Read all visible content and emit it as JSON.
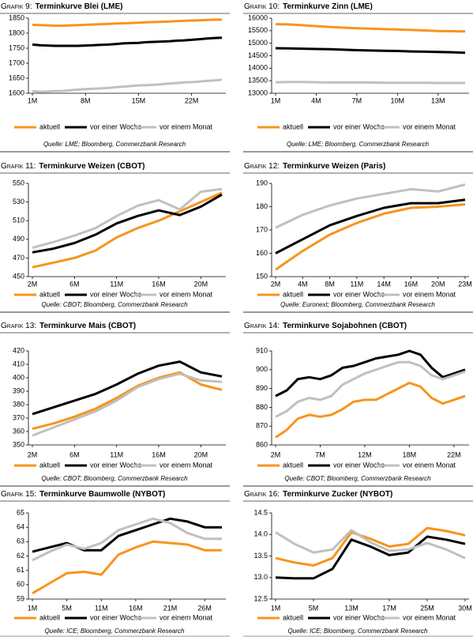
{
  "chart_data": [
    {
      "type": "line",
      "label": "Grafik 9:",
      "title": "Terminkurve Blei (LME)",
      "categories": [
        "1M",
        null,
        null,
        null,
        null,
        null,
        null,
        "8M",
        null,
        null,
        null,
        null,
        null,
        null,
        "15M",
        null,
        null,
        null,
        null,
        null,
        null,
        "22M",
        null,
        null,
        null,
        null
      ],
      "series": [
        {
          "name": "aktuell",
          "color": "#f7941d",
          "values": [
            1828,
            1827,
            1826,
            1825,
            1825,
            1826,
            1827,
            1828,
            1829,
            1830,
            1831,
            1832,
            1833,
            1834,
            1835,
            1836,
            1837,
            1838,
            1839,
            1840,
            1841,
            1842,
            1843,
            1844,
            1845,
            1845
          ]
        },
        {
          "name": "vor einer Woche",
          "color": "#000000",
          "values": [
            1762,
            1760,
            1759,
            1758,
            1758,
            1758,
            1758,
            1759,
            1760,
            1761,
            1762,
            1764,
            1766,
            1767,
            1768,
            1770,
            1771,
            1772,
            1773,
            1775,
            1776,
            1778,
            1780,
            1782,
            1784,
            1785
          ]
        },
        {
          "name": "vor einem Monat",
          "color": "#c0c0c0",
          "values": [
            1607,
            1605,
            1606,
            1607,
            1608,
            1610,
            1612,
            1614,
            1615,
            1616,
            1618,
            1620,
            1622,
            1624,
            1626,
            1627,
            1628,
            1630,
            1632,
            1634,
            1636,
            1637,
            1639,
            1641,
            1643,
            1645
          ]
        }
      ],
      "ylim": [
        1600,
        1850
      ],
      "yticks": [
        1600,
        1650,
        1700,
        1750,
        1800,
        1850
      ],
      "legend": "bottom",
      "source": "Quelle: LME; Bloomberg, Commerzbank Research"
    },
    {
      "type": "line",
      "label": "Grafik 10:",
      "title": "Terminkurve Zinn (LME)",
      "categories": [
        "1M",
        null,
        null,
        "4M",
        null,
        null,
        "7M",
        null,
        null,
        "10M",
        null,
        null,
        "13M",
        null,
        null
      ],
      "series": [
        {
          "name": "aktuell",
          "color": "#f7941d",
          "values": [
            15760,
            15750,
            15720,
            15680,
            15650,
            15620,
            15600,
            15580,
            15560,
            15550,
            15530,
            15510,
            15490,
            15480,
            15470
          ]
        },
        {
          "name": "vor einer Woche",
          "color": "#000000",
          "values": [
            14800,
            14790,
            14780,
            14770,
            14760,
            14740,
            14720,
            14710,
            14700,
            14690,
            14670,
            14660,
            14650,
            14640,
            14620
          ]
        },
        {
          "name": "vor einem Monat",
          "color": "#c0c0c0",
          "values": [
            13440,
            13450,
            13450,
            13440,
            13430,
            13430,
            13430,
            13430,
            13420,
            13420,
            13420,
            13420,
            13410,
            13410,
            13410
          ]
        }
      ],
      "ylim": [
        13000,
        16000
      ],
      "yticks": [
        13000,
        13500,
        14000,
        14500,
        15000,
        15500,
        16000
      ],
      "legend": "bottom",
      "source": "Quelle: LME; Bloomberg, Commerzbank Research"
    },
    {
      "type": "line",
      "label": "Grafik 11:",
      "title": "Terminkurve Weizen (CBOT)",
      "categories": [
        "2M",
        null,
        "6M",
        null,
        "11M",
        null,
        "16M",
        null,
        "20M",
        null
      ],
      "series": [
        {
          "name": "aktuell",
          "color": "#f7941d",
          "values": [
            460,
            465,
            470,
            478,
            492,
            502,
            510,
            520,
            530,
            540
          ]
        },
        {
          "name": "vor einer Woche",
          "color": "#000000",
          "values": [
            476,
            480,
            486,
            495,
            507,
            515,
            521,
            516,
            525,
            538
          ]
        },
        {
          "name": "vor einem Monat",
          "color": "#c0c0c0",
          "values": [
            481,
            487,
            494,
            502,
            515,
            526,
            532,
            522,
            541,
            544
          ]
        }
      ],
      "ylim": [
        450,
        550
      ],
      "yticks": [
        450,
        470,
        490,
        510,
        530,
        550
      ],
      "legend": "bottom",
      "source": "Quelle: CBOT; Bloomberg, Commerzbank Research"
    },
    {
      "type": "line",
      "label": "Grafik 12:",
      "title": "Terminkurve Weizen (Paris)",
      "categories": [
        "2M",
        "4M",
        "8M",
        "11M",
        "14M",
        "16M",
        "20M",
        "23M"
      ],
      "series": [
        {
          "name": "aktuell",
          "color": "#f7941d",
          "values": [
            153,
            161,
            168,
            173,
            177,
            179.5,
            180,
            181
          ]
        },
        {
          "name": "vor einer Woche",
          "color": "#000000",
          "values": [
            160,
            166,
            172,
            176,
            179.5,
            181.5,
            181.5,
            183
          ]
        },
        {
          "name": "vor einem Monat",
          "color": "#c0c0c0",
          "values": [
            171,
            176.5,
            180.5,
            183.5,
            185.5,
            187.5,
            186.5,
            189.5
          ]
        }
      ],
      "ylim": [
        150,
        190
      ],
      "yticks": [
        150,
        160,
        170,
        180,
        190
      ],
      "legend": "bottom",
      "source": "Quelle: Euronext; Bloomberg, Commerzbank Research"
    },
    {
      "type": "line",
      "label": "Grafik 13:",
      "title": "Terminkurve Mais (CBOT)",
      "categories": [
        "2M",
        null,
        "6M",
        null,
        "11M",
        null,
        "16M",
        null,
        "20M",
        null
      ],
      "series": [
        {
          "name": "aktuell",
          "color": "#f7941d",
          "values": [
            362,
            366,
            371,
            377,
            385,
            394,
            400,
            404,
            395,
            391
          ]
        },
        {
          "name": "vor einer Woche",
          "color": "#000000",
          "values": [
            373,
            378,
            383,
            388,
            395,
            403,
            409,
            412,
            404,
            401
          ]
        },
        {
          "name": "vor einem Monat",
          "color": "#c0c0c0",
          "values": [
            357,
            363,
            369,
            375,
            383,
            393,
            399,
            403,
            398,
            397
          ]
        }
      ],
      "ylim": [
        350,
        420
      ],
      "yticks": [
        350,
        360,
        370,
        380,
        390,
        400,
        410,
        420
      ],
      "legend": "bottom",
      "source": "Quelle: CBOT; Bloomberg, Commerzbank Research"
    },
    {
      "type": "line",
      "label": "Grafik 14:",
      "title": "Terminkurve Sojabohnen (CBOT)",
      "categories": [
        "2M",
        null,
        null,
        null,
        "7M",
        null,
        null,
        null,
        "12M",
        null,
        null,
        null,
        "18M",
        null,
        null,
        null,
        "22M",
        null
      ],
      "series": [
        {
          "name": "aktuell",
          "color": "#f7941d",
          "values": [
            864,
            868,
            874,
            876,
            875,
            876,
            879,
            883,
            884,
            884,
            887,
            890,
            893,
            891,
            885,
            882,
            884,
            886
          ]
        },
        {
          "name": "vor einer Woche",
          "color": "#000000",
          "values": [
            886,
            889,
            895,
            896,
            895,
            897,
            901,
            902,
            904,
            906,
            907,
            908,
            910,
            908,
            901,
            896,
            898,
            900
          ]
        },
        {
          "name": "vor einem Monat",
          "color": "#c0c0c0",
          "values": [
            875,
            878,
            883,
            885,
            884,
            886,
            892,
            895,
            898,
            900,
            902,
            904,
            904,
            902,
            897,
            895,
            897,
            899
          ]
        }
      ],
      "ylim": [
        860,
        910
      ],
      "yticks": [
        860,
        870,
        880,
        890,
        900,
        910
      ],
      "legend": "bottom",
      "source": "Quelle: CBOT; Bloomberg, Commerzbank Research"
    },
    {
      "type": "line",
      "label": "Grafik 15:",
      "title": "Terminkurve Baumwolle (NYBOT)",
      "categories": [
        "1M",
        null,
        "5M",
        null,
        "11M",
        null,
        "16M",
        null,
        "21M",
        null,
        "26M",
        null
      ],
      "series": [
        {
          "name": "aktuell",
          "color": "#f7941d",
          "values": [
            59.4,
            60.1,
            60.8,
            60.9,
            60.7,
            62.1,
            62.6,
            63.0,
            62.9,
            62.8,
            62.4,
            62.4
          ]
        },
        {
          "name": "vor einer Woche",
          "color": "#000000",
          "values": [
            62.3,
            62.6,
            62.9,
            62.4,
            62.4,
            63.4,
            63.8,
            64.2,
            64.6,
            64.4,
            64.0,
            64.0
          ]
        },
        {
          "name": "vor einem Monat",
          "color": "#c0c0c0",
          "values": [
            61.7,
            62.3,
            62.8,
            62.5,
            62.9,
            63.8,
            64.2,
            64.6,
            64.3,
            63.6,
            63.2,
            63.2
          ]
        }
      ],
      "ylim": [
        59,
        65
      ],
      "yticks": [
        59,
        60,
        61,
        62,
        63,
        64,
        65
      ],
      "legend": "bottom",
      "source": "Quelle: ICE; Bloomberg, Commerzbank Research"
    },
    {
      "type": "line",
      "label": "Grafik 16:",
      "title": "Terminkurve Zucker (NYBOT)",
      "categories": [
        "1M",
        null,
        "5M",
        null,
        "13M",
        null,
        "17M",
        null,
        "25M",
        null,
        "30M"
      ],
      "series": [
        {
          "name": "aktuell",
          "color": "#f7941d",
          "values": [
            13.45,
            13.35,
            13.28,
            13.45,
            14.05,
            13.9,
            13.72,
            13.78,
            14.15,
            14.08,
            13.98
          ]
        },
        {
          "name": "vor einer Woche",
          "color": "#000000",
          "values": [
            13.0,
            12.98,
            12.98,
            13.2,
            13.88,
            13.72,
            13.52,
            13.58,
            13.95,
            13.88,
            13.78
          ]
        },
        {
          "name": "vor einem Monat",
          "color": "#c0c0c0",
          "values": [
            14.05,
            13.78,
            13.58,
            13.65,
            14.1,
            13.82,
            13.62,
            13.65,
            13.8,
            13.65,
            13.45
          ]
        }
      ],
      "ylim": [
        12.5,
        14.5
      ],
      "yticks": [
        12.5,
        {
          "value": 13,
          "label": "13.0"
        },
        13.5,
        {
          "value": 14,
          "label": "14.0"
        },
        14.5
      ],
      "legend": "bottom",
      "source": "Quelle: ICE; Bloomberg, Commerzbank Research"
    }
  ]
}
